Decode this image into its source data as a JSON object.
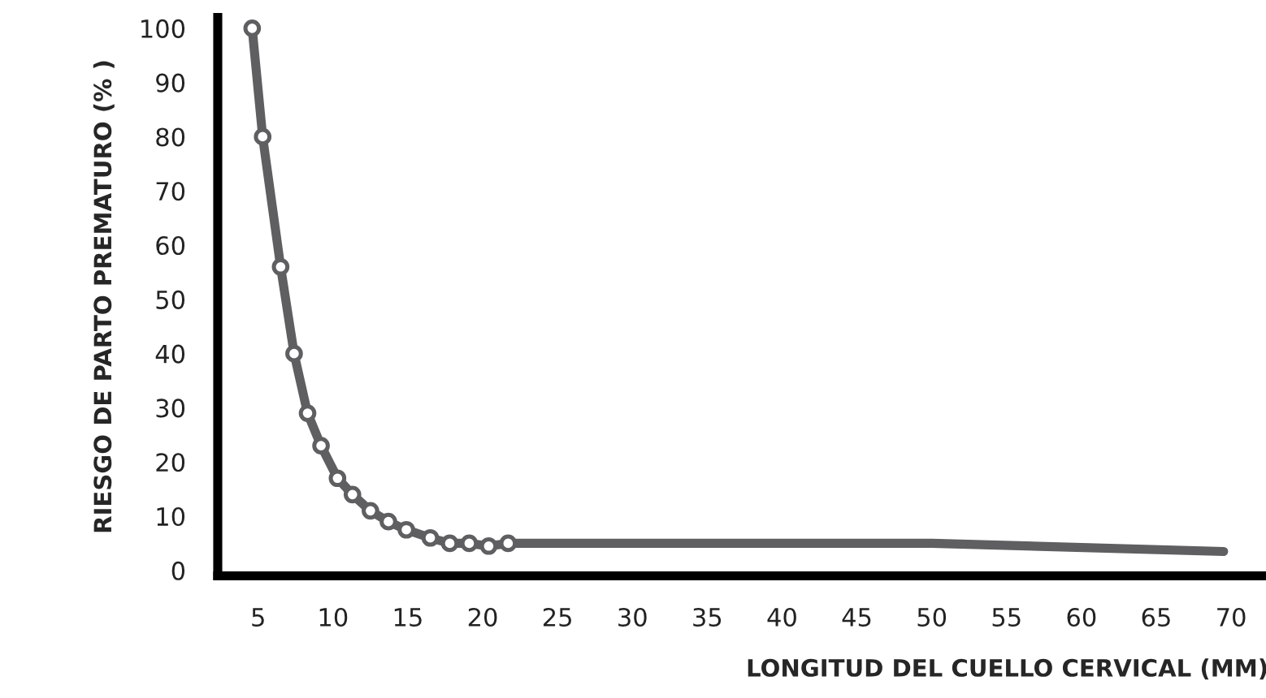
{
  "chart_data": {
    "type": "line",
    "xlabel": "LONGITUD DEL CUELLO CERVICAL (MM)",
    "ylabel": "RIESGO DE PARTO PREMATURO (% )",
    "series": [
      {
        "color": "#5f5f62",
        "marker": "circle",
        "x": [
          4.6,
          5.3,
          6.5,
          7.4,
          8.3,
          9.2,
          10.3,
          11.3,
          12.5,
          13.7,
          14.9,
          16.5,
          17.8,
          19.1,
          20.4,
          21.7
        ],
        "values": [
          100,
          80,
          56,
          40,
          29,
          23,
          17,
          14,
          11,
          9,
          7.5,
          6,
          5,
          5,
          4.5,
          5
        ]
      },
      {
        "color": "#5f5f62",
        "marker": "none",
        "x": [
          21.7,
          50,
          69.5
        ],
        "values": [
          5,
          5,
          3.5
        ]
      }
    ],
    "xlim": [
      2.3,
      72.5
    ],
    "ylim": [
      -1,
      102
    ],
    "xticks": [
      5,
      10,
      15,
      20,
      25,
      30,
      35,
      40,
      45,
      50,
      55,
      60,
      65,
      70
    ],
    "yticks": [
      0,
      10,
      20,
      30,
      40,
      50,
      60,
      70,
      80,
      90,
      100
    ],
    "grid": false,
    "legend": false
  }
}
